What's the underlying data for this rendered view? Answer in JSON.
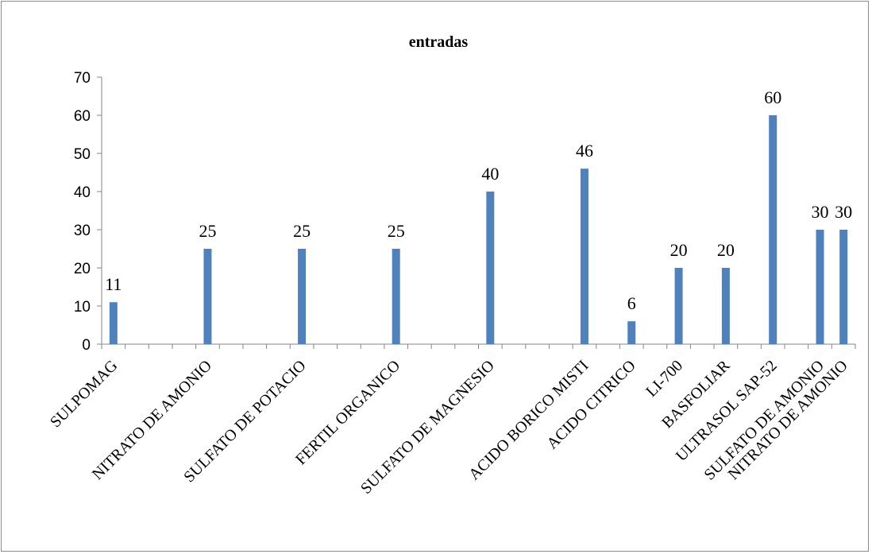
{
  "chart_data": {
    "type": "bar",
    "title": "entradas",
    "xlabel": "",
    "ylabel": "",
    "ylim": [
      0,
      70
    ],
    "yticks": [
      0,
      10,
      20,
      30,
      40,
      50,
      60,
      70
    ],
    "grid": false,
    "legend": "none",
    "bar_color": "#4F81BD",
    "categories": [
      "SULPOMAG",
      "",
      "",
      "",
      "NITRATO DE AMONIO",
      "",
      "",
      "",
      "SULFATO DE POTACIO",
      "",
      "",
      "",
      "FERTIL ORGANICO",
      "",
      "",
      "",
      "SULFATO DE MAGNESIO",
      "",
      "",
      "",
      "ACIDO BORICO MISTI",
      "",
      "ACIDO CITRICO",
      "",
      "LI-700",
      "",
      "BASFOLIAR",
      "",
      "ULTRASOL SAP-52",
      "",
      "SULFATO DE AMONIO",
      "NITRATO DE AMONIO"
    ],
    "values": [
      11,
      null,
      null,
      null,
      25,
      null,
      null,
      null,
      25,
      null,
      null,
      null,
      25,
      null,
      null,
      null,
      40,
      null,
      null,
      null,
      46,
      null,
      6,
      null,
      20,
      null,
      20,
      null,
      60,
      null,
      30,
      30
    ]
  }
}
